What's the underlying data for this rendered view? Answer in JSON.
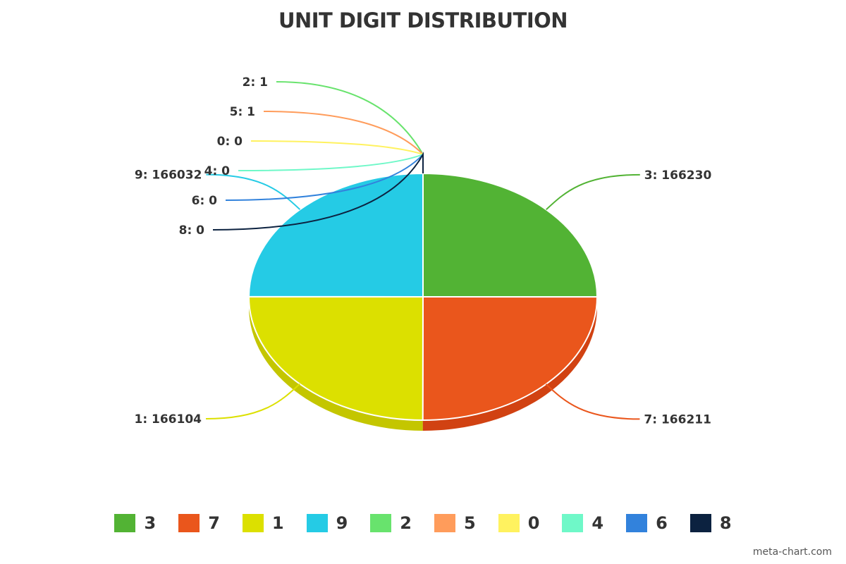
{
  "chart_data": {
    "type": "pie",
    "title": "UNIT DIGIT DISTRIBUTION",
    "legend_position": "bottom",
    "slices": [
      {
        "label": "3",
        "value": 166230,
        "color": "#52b334",
        "side_color": "#469a2b"
      },
      {
        "label": "7",
        "value": 166211,
        "color": "#ea561c",
        "side_color": "#d14212"
      },
      {
        "label": "1",
        "value": 166104,
        "color": "#dce000",
        "side_color": "#c4c600"
      },
      {
        "label": "9",
        "value": 166032,
        "color": "#25cbe5",
        "side_color": "#1aaec4"
      },
      {
        "label": "2",
        "value": 1,
        "color": "#68e36d",
        "side_color": "#55c85a"
      },
      {
        "label": "5",
        "value": 1,
        "color": "#ff9c5b",
        "side_color": "#e6874a"
      },
      {
        "label": "0",
        "value": 0,
        "color": "#fff25f",
        "side_color": "#e6da50"
      },
      {
        "label": "4",
        "value": 0,
        "color": "#6ff8c8",
        "side_color": "#5cdcb0"
      },
      {
        "label": "6",
        "value": 0,
        "color": "#3282dc",
        "side_color": "#2a6fbd"
      },
      {
        "label": "8",
        "value": 0,
        "color": "#0c2240",
        "side_color": "#081a33"
      }
    ]
  },
  "credit": "meta-chart.com"
}
